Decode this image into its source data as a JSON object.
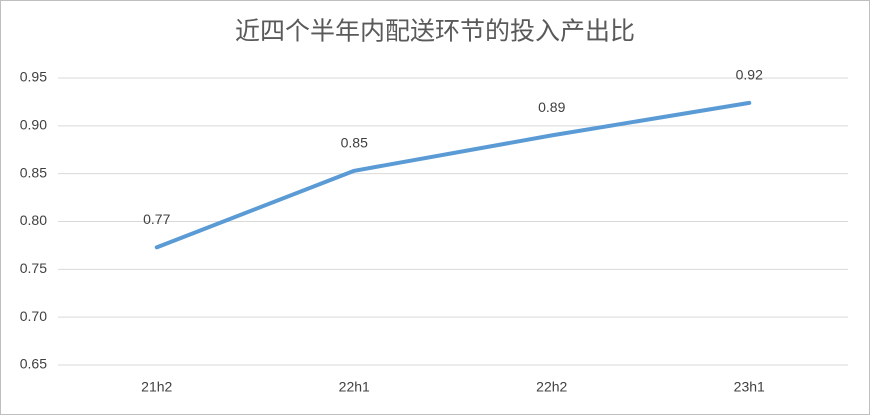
{
  "chart_data": {
    "type": "line",
    "title": "近四个半年内配送环节的投入产出比",
    "categories": [
      "21h2",
      "22h1",
      "22h2",
      "23h1"
    ],
    "series": [
      {
        "color": "#5b9bd5",
        "values": [
          0.773,
          0.853,
          0.89,
          0.924
        ],
        "value_labels": [
          "0.77",
          "0.85",
          "0.89",
          "0.92"
        ]
      }
    ],
    "ylim": [
      0.65,
      0.95
    ],
    "yticks": [
      0.65,
      {
        "value": 0.7,
        "label": "0.70"
      },
      0.75,
      {
        "value": 0.8,
        "label": "0.80"
      },
      0.85,
      {
        "value": 0.9,
        "label": "0.90"
      },
      0.95
    ],
    "grid": true
  }
}
